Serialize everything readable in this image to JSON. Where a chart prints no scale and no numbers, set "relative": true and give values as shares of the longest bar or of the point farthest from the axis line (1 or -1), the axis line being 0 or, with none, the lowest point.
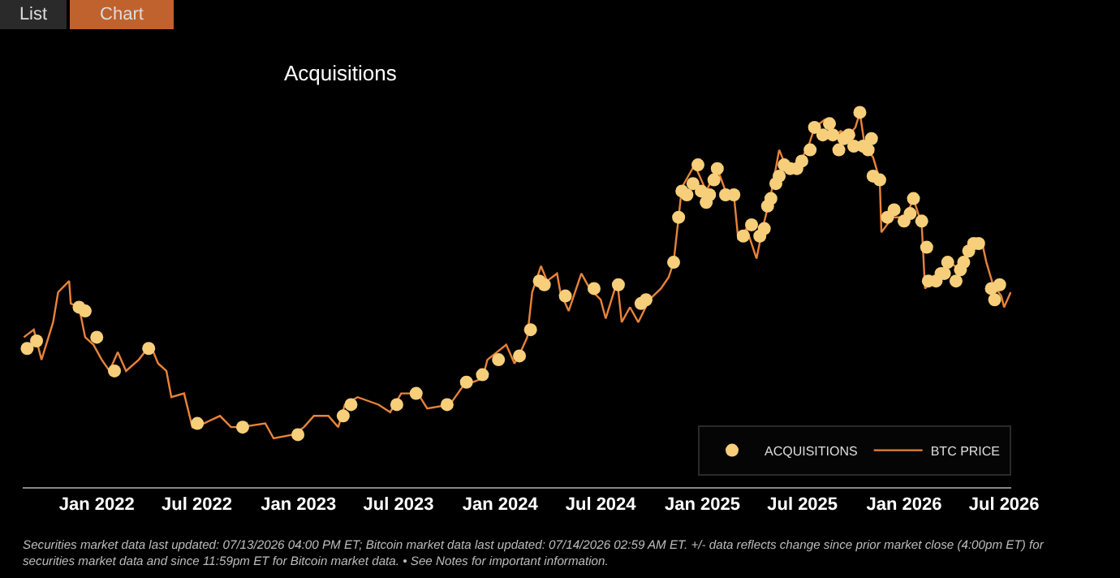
{
  "chart_data": {
    "type": "line",
    "title": "Acquisitions",
    "relative": true,
    "legend": "bottom right",
    "tick_labels": "x",
    "annotations": [
      "List",
      "Chart",
      "Securities market data last updated: 07/13/2026 04:00 PM ET; Bitcoin market data last updated: 07/14/2026 02:59 AM ET. +/- data reflects change since prior market close (4:00pm ET) for securities market data and since 11:59pm ET for Bitcoin market data.  •  See Notes for important information."
    ],
    "xlim": [
      "2021-08-20",
      "2026-07-14"
    ],
    "xticks": [
      {
        "value": "2022-01-01",
        "label": "Jan 2022"
      },
      {
        "value": "2022-07-01",
        "label": "Jul 2022"
      },
      {
        "value": "2023-01-01",
        "label": "Jan 2023"
      },
      {
        "value": "2023-07-01",
        "label": "Jul 2023"
      },
      {
        "value": "2024-01-01",
        "label": "Jan 2024"
      },
      {
        "value": "2024-07-01",
        "label": "Jul 2024"
      },
      {
        "value": "2025-01-01",
        "label": "Jan 2025"
      },
      {
        "value": "2025-07-01",
        "label": "Jul 2025"
      },
      {
        "value": "2026-01-01",
        "label": "Jan 2026"
      },
      {
        "value": "2026-07-01",
        "label": "Jul 2026"
      }
    ],
    "series": [
      {
        "name": "BTC PRICE",
        "color": "#e8833a",
        "x": [
          "2021-08-22",
          "2021-09-09",
          "2021-09-23",
          "2021-10-14",
          "2021-10-23",
          "2021-11-12",
          "2021-11-15",
          "2021-11-30",
          "2021-12-11",
          "2021-12-26",
          "2022-01-10",
          "2022-01-24",
          "2022-02-08",
          "2022-02-23",
          "2022-03-18",
          "2022-04-08",
          "2022-04-22",
          "2022-05-07",
          "2022-05-16",
          "2022-06-08",
          "2022-06-23",
          "2022-07-14",
          "2022-08-12",
          "2022-09-01",
          "2022-09-19",
          "2022-11-02",
          "2022-11-17",
          "2022-12-22",
          "2023-01-11",
          "2023-01-29",
          "2023-02-24",
          "2023-03-14",
          "2023-03-26",
          "2023-04-18",
          "2023-05-26",
          "2023-06-16",
          "2023-07-06",
          "2023-08-05",
          "2023-08-22",
          "2023-10-02",
          "2023-10-26",
          "2023-11-30",
          "2023-12-09",
          "2024-01-12",
          "2024-01-27",
          "2024-02-07",
          "2024-02-19",
          "2024-02-28",
          "2024-03-15",
          "2024-03-26",
          "2024-04-13",
          "2024-04-19",
          "2024-05-04",
          "2024-05-27",
          "2024-06-11",
          "2024-07-01",
          "2024-07-10",
          "2024-07-31",
          "2024-08-08",
          "2024-08-23",
          "2024-09-07",
          "2024-09-27",
          "2024-10-18",
          "2024-11-01",
          "2024-11-10",
          "2024-11-19",
          "2024-11-25",
          "2024-12-18",
          "2025-01-08",
          "2025-01-28",
          "2025-02-12",
          "2025-02-27",
          "2025-03-07",
          "2025-03-22",
          "2025-04-09",
          "2025-04-20",
          "2025-05-05",
          "2025-05-20",
          "2025-06-03",
          "2025-06-27",
          "2025-07-12",
          "2025-07-23",
          "2025-08-10",
          "2025-08-25",
          "2025-09-08",
          "2025-09-23",
          "2025-10-05",
          "2025-10-13",
          "2025-10-22",
          "2025-11-06",
          "2025-11-18",
          "2025-11-21",
          "2025-12-11",
          "2026-01-04",
          "2026-01-18",
          "2026-02-02",
          "2026-02-08",
          "2026-02-22",
          "2026-03-03",
          "2026-03-24",
          "2026-04-13",
          "2026-05-01",
          "2026-05-21",
          "2026-05-30",
          "2026-06-11",
          "2026-06-26",
          "2026-07-01",
          "2026-07-13"
        ],
        "values": [
          0.4,
          0.42,
          0.34,
          0.44,
          0.52,
          0.55,
          0.49,
          0.48,
          0.4,
          0.38,
          0.34,
          0.31,
          0.36,
          0.31,
          0.34,
          0.38,
          0.33,
          0.31,
          0.24,
          0.25,
          0.16,
          0.17,
          0.19,
          0.16,
          0.16,
          0.17,
          0.13,
          0.14,
          0.16,
          0.19,
          0.19,
          0.16,
          0.22,
          0.24,
          0.22,
          0.2,
          0.25,
          0.25,
          0.21,
          0.22,
          0.27,
          0.29,
          0.34,
          0.38,
          0.33,
          0.36,
          0.4,
          0.52,
          0.59,
          0.55,
          0.57,
          0.52,
          0.47,
          0.57,
          0.53,
          0.5,
          0.45,
          0.55,
          0.44,
          0.48,
          0.44,
          0.5,
          0.53,
          0.56,
          0.6,
          0.72,
          0.8,
          0.86,
          0.79,
          0.85,
          0.79,
          0.78,
          0.66,
          0.69,
          0.61,
          0.69,
          0.78,
          0.9,
          0.85,
          0.87,
          0.91,
          0.96,
          0.98,
          0.93,
          0.95,
          0.94,
          0.96,
          1,
          0.91,
          0.88,
          0.82,
          0.68,
          0.72,
          0.72,
          0.77,
          0.7,
          0.53,
          0.55,
          0.56,
          0.6,
          0.58,
          0.63,
          0.66,
          0.6,
          0.54,
          0.51,
          0.48,
          0.52
        ]
      },
      {
        "name": "ACQUISITIONS",
        "type": "scatter",
        "marker": "circle",
        "color": "#f7cf7a",
        "x": [
          "2021-08-28",
          "2021-09-14",
          "2021-11-30",
          "2021-12-11",
          "2022-01-01",
          "2022-02-02",
          "2022-04-05",
          "2022-07-02",
          "2022-09-22",
          "2022-12-31",
          "2023-03-23",
          "2023-04-06",
          "2023-06-28",
          "2023-08-02",
          "2023-09-27",
          "2023-11-01",
          "2023-11-30",
          "2023-12-29",
          "2024-02-05",
          "2024-02-25",
          "2024-03-12",
          "2024-03-21",
          "2024-04-28",
          "2024-06-19",
          "2024-08-02",
          "2024-09-12",
          "2024-09-21",
          "2024-11-10",
          "2024-11-19",
          "2024-11-25",
          "2024-12-04",
          "2024-12-15",
          "2024-12-24",
          "2024-12-30",
          "2025-01-08",
          "2025-01-14",
          "2025-01-22",
          "2025-01-28",
          "2025-02-12",
          "2025-02-27",
          "2025-03-16",
          "2025-03-31",
          "2025-04-15",
          "2025-04-23",
          "2025-04-29",
          "2025-05-05",
          "2025-05-14",
          "2025-05-20",
          "2025-05-29",
          "2025-06-09",
          "2025-06-21",
          "2025-06-30",
          "2025-07-15",
          "2025-07-23",
          "2025-08-07",
          "2025-08-19",
          "2025-08-25",
          "2025-09-05",
          "2025-09-14",
          "2025-09-23",
          "2025-10-02",
          "2025-10-13",
          "2025-10-19",
          "2025-10-28",
          "2025-11-03",
          "2025-11-06",
          "2025-11-18",
          "2025-12-02",
          "2025-12-14",
          "2026-01-01",
          "2026-01-12",
          "2026-01-18",
          "2026-02-02",
          "2026-02-11",
          "2026-02-14",
          "2026-02-28",
          "2026-03-09",
          "2026-03-15",
          "2026-03-21",
          "2026-04-05",
          "2026-04-13",
          "2026-04-19",
          "2026-04-28",
          "2026-05-07",
          "2026-05-16",
          "2026-06-08",
          "2026-06-14",
          "2026-06-23"
        ],
        "values": [
          0.37,
          0.39,
          0.48,
          0.47,
          0.4,
          0.31,
          0.37,
          0.17,
          0.16,
          0.14,
          0.19,
          0.22,
          0.22,
          0.25,
          0.22,
          0.28,
          0.3,
          0.34,
          0.35,
          0.42,
          0.55,
          0.54,
          0.51,
          0.53,
          0.54,
          0.49,
          0.5,
          0.6,
          0.72,
          0.79,
          0.78,
          0.81,
          0.86,
          0.79,
          0.76,
          0.78,
          0.82,
          0.85,
          0.78,
          0.78,
          0.67,
          0.7,
          0.67,
          0.69,
          0.75,
          0.77,
          0.81,
          0.83,
          0.86,
          0.85,
          0.85,
          0.87,
          0.9,
          0.96,
          0.94,
          0.97,
          0.94,
          0.9,
          0.93,
          0.94,
          0.91,
          1,
          0.91,
          0.9,
          0.93,
          0.83,
          0.82,
          0.72,
          0.74,
          0.71,
          0.73,
          0.77,
          0.71,
          0.64,
          0.55,
          0.55,
          0.57,
          0.57,
          0.6,
          0.55,
          0.58,
          0.6,
          0.63,
          0.65,
          0.65,
          0.53,
          0.5,
          0.54
        ]
      }
    ]
  }
}
